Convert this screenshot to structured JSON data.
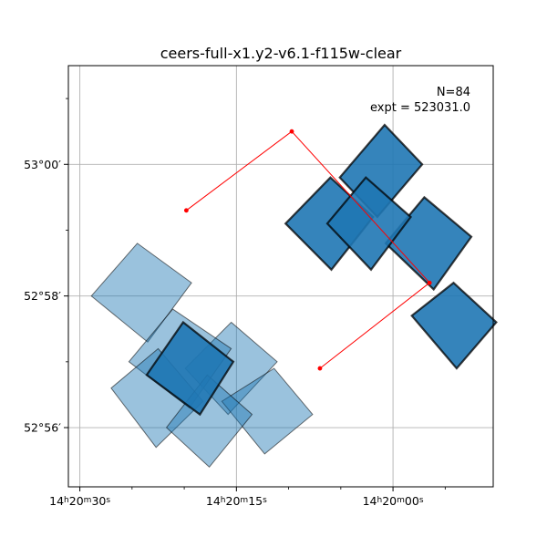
{
  "chart_data": {
    "type": "footprint-map",
    "title": "ceers-full-x1.y2-v6.1-f115w-clear",
    "annotations": [
      "N=84",
      "expt = 523031.0"
    ],
    "x_axis": {
      "label": "",
      "quantity": "Right Ascension (seconds of 14h20m)",
      "range": [
        31.1,
        281.0
      ],
      "direction": "decreasing to the right",
      "ticks": [
        {
          "value": 30,
          "label": "14h20m30s"
        },
        {
          "value": 15,
          "label": "14h20m15s"
        },
        {
          "value": 0,
          "label": "14h20m00s"
        }
      ],
      "minor_ticks": [
        25,
        20,
        10,
        5,
        -5
      ]
    },
    "y_axis": {
      "label": "",
      "quantity": "Declination (arcminutes above 52°)",
      "range": [
        55.1,
        61.5
      ],
      "ticks": [
        {
          "value": 60,
          "label": "53°00′"
        },
        {
          "value": 58,
          "label": "52°58′"
        },
        {
          "value": 56,
          "label": "52°56′"
        }
      ],
      "minor_ticks": [
        61,
        59,
        57
      ]
    },
    "grid": true,
    "pointing_path": [
      {
        "ra": 19.8,
        "dec": 59.3
      },
      {
        "ra": 9.7,
        "dec": 60.5
      },
      {
        "ra": -3.5,
        "dec": 58.2
      },
      {
        "ra": 7.0,
        "dec": 56.9
      }
    ],
    "footprints": [
      {
        "group": "shallow",
        "opacity": 0.45,
        "corners": [
          [
            24.5,
            58.8
          ],
          [
            19.3,
            58.2
          ],
          [
            23.5,
            57.3
          ],
          [
            28.9,
            58.0
          ]
        ]
      },
      {
        "group": "shallow",
        "opacity": 0.45,
        "corners": [
          [
            15.5,
            57.6
          ],
          [
            11.1,
            57.0
          ],
          [
            15.8,
            56.2
          ],
          [
            19.9,
            56.9
          ]
        ]
      },
      {
        "group": "shallow",
        "opacity": 0.45,
        "corners": [
          [
            21.1,
            57.8
          ],
          [
            15.5,
            57.2
          ],
          [
            19.5,
            56.3
          ],
          [
            25.3,
            57.0
          ]
        ]
      },
      {
        "group": "shallow",
        "opacity": 0.45,
        "corners": [
          [
            11.4,
            56.9
          ],
          [
            7.7,
            56.2
          ],
          [
            12.3,
            55.6
          ],
          [
            16.4,
            56.4
          ]
        ]
      },
      {
        "group": "shallow",
        "opacity": 0.45,
        "corners": [
          [
            22.5,
            57.2
          ],
          [
            18.2,
            56.4
          ],
          [
            22.7,
            55.7
          ],
          [
            27.0,
            56.6
          ]
        ]
      },
      {
        "group": "shallow",
        "opacity": 0.45,
        "corners": [
          [
            17.8,
            56.8
          ],
          [
            13.5,
            56.2
          ],
          [
            17.6,
            55.4
          ],
          [
            21.7,
            56.0
          ]
        ]
      },
      {
        "group": "deep",
        "opacity": 0.9,
        "corners": [
          [
            20.1,
            57.6
          ],
          [
            15.3,
            57.0
          ],
          [
            18.5,
            56.2
          ],
          [
            23.6,
            56.8
          ]
        ]
      },
      {
        "group": "deep",
        "opacity": 0.9,
        "corners": [
          [
            6.0,
            59.8
          ],
          [
            1.9,
            59.2
          ],
          [
            5.9,
            58.4
          ],
          [
            10.3,
            59.1
          ]
        ]
      },
      {
        "group": "deep",
        "opacity": 0.9,
        "corners": [
          [
            0.8,
            60.6
          ],
          [
            -2.8,
            60.0
          ],
          [
            1.5,
            59.2
          ],
          [
            5.1,
            59.8
          ]
        ]
      },
      {
        "group": "deep",
        "opacity": 0.9,
        "corners": [
          [
            -3.0,
            59.5
          ],
          [
            -7.5,
            58.9
          ],
          [
            -3.9,
            58.1
          ],
          [
            0.7,
            58.8
          ]
        ]
      },
      {
        "group": "deep",
        "opacity": 0.9,
        "corners": [
          [
            2.6,
            59.8
          ],
          [
            -1.7,
            59.2
          ],
          [
            2.1,
            58.4
          ],
          [
            6.3,
            59.1
          ]
        ]
      },
      {
        "group": "deep",
        "opacity": 0.9,
        "corners": [
          [
            -5.8,
            58.2
          ],
          [
            -9.9,
            57.6
          ],
          [
            -6.1,
            56.9
          ],
          [
            -1.8,
            57.7
          ]
        ]
      }
    ],
    "colors": {
      "footprint": "#1f77b4",
      "footprint_edge": "#000000",
      "pointing_path": "#ff0000"
    }
  }
}
